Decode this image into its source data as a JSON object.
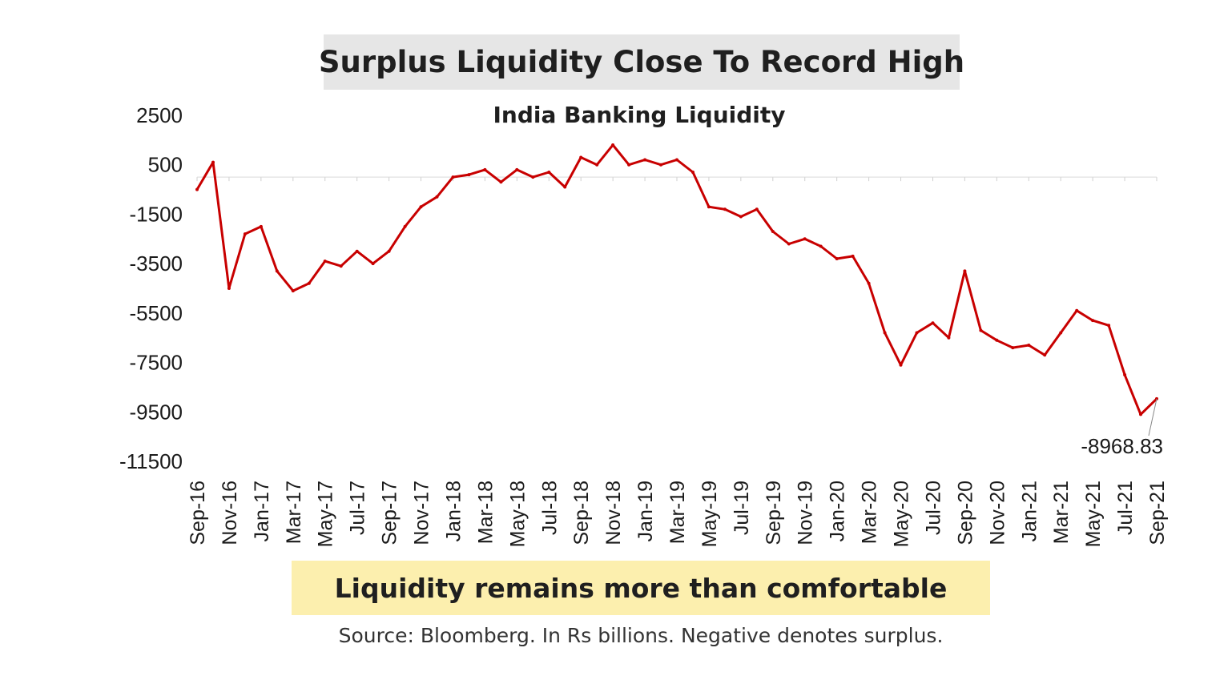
{
  "headline": "Surplus Liquidity Close To Record High",
  "callout": "Liquidity remains more than comfortable",
  "source": "Source: Bloomberg. In Rs billions. Negative denotes surplus.",
  "colors": {
    "line": "#c80000",
    "headline_bg": "#e6e6e6",
    "callout_bg": "#fcefae"
  },
  "chart_data": {
    "type": "line",
    "title": "India Banking Liquidity",
    "xlabel": "",
    "ylabel": "",
    "ylim": [
      -11500,
      2500
    ],
    "y_ticks": [
      2500,
      500,
      -1500,
      -3500,
      -5500,
      -7500,
      -9500,
      -11500
    ],
    "y_tick_labels": [
      "2500",
      "500",
      "-1500",
      "-3500",
      "-5500",
      "-7500",
      "-9500",
      "-11500"
    ],
    "x_ticks": [
      "Sep-16",
      "Nov-16",
      "Jan-17",
      "Mar-17",
      "May-17",
      "Jul-17",
      "Sep-17",
      "Nov-17",
      "Jan-18",
      "Mar-18",
      "May-18",
      "Jul-18",
      "Sep-18",
      "Nov-18",
      "Jan-19",
      "Mar-19",
      "May-19",
      "Jul-19",
      "Sep-19",
      "Nov-19",
      "Jan-20",
      "Mar-20",
      "May-20",
      "Jul-20",
      "Sep-20",
      "Nov-20",
      "Jan-21",
      "Mar-21",
      "May-21",
      "Jul-21",
      "Sep-21"
    ],
    "grid": true,
    "legend": "none",
    "last_value_label": "-8968.83",
    "series": [
      {
        "x": [
          "Sep-16",
          "Oct-16",
          "Nov-16",
          "Dec-16",
          "Jan-17",
          "Feb-17",
          "Mar-17",
          "Apr-17",
          "May-17",
          "Jun-17",
          "Jul-17",
          "Aug-17",
          "Sep-17",
          "Oct-17",
          "Nov-17",
          "Dec-17",
          "Jan-18",
          "Feb-18",
          "Mar-18",
          "Apr-18",
          "May-18",
          "Jun-18",
          "Jul-18",
          "Aug-18",
          "Sep-18",
          "Oct-18",
          "Nov-18",
          "Dec-18",
          "Jan-19",
          "Feb-19",
          "Mar-19",
          "Apr-19",
          "May-19",
          "Jun-19",
          "Jul-19",
          "Aug-19",
          "Sep-19",
          "Oct-19",
          "Nov-19",
          "Dec-19",
          "Jan-20",
          "Feb-20",
          "Mar-20",
          "Apr-20",
          "May-20",
          "Jun-20",
          "Jul-20",
          "Aug-20",
          "Sep-20",
          "Oct-20",
          "Nov-20",
          "Dec-20",
          "Jan-21",
          "Feb-21",
          "Mar-21",
          "Apr-21",
          "May-21",
          "Jun-21",
          "Jul-21",
          "Aug-21",
          "Sep-21"
        ],
        "values": [
          -500,
          600,
          -4500,
          -2300,
          -2000,
          -3800,
          -4600,
          -4300,
          -3400,
          -3600,
          -3000,
          -3500,
          -3000,
          -2000,
          -1200,
          -800,
          0,
          100,
          300,
          -200,
          300,
          0,
          200,
          -400,
          800,
          500,
          1300,
          500,
          700,
          500,
          700,
          200,
          -1200,
          -1300,
          -1600,
          -1300,
          -2200,
          -2700,
          -2500,
          -2800,
          -3300,
          -3200,
          -4300,
          -6300,
          -7600,
          -6300,
          -5900,
          -6500,
          -3800,
          -6200,
          -6600,
          -6900,
          -6800,
          -7200,
          -6300,
          -5400,
          -5800,
          -6000,
          -8000,
          -9600,
          -8968.83
        ]
      }
    ]
  }
}
